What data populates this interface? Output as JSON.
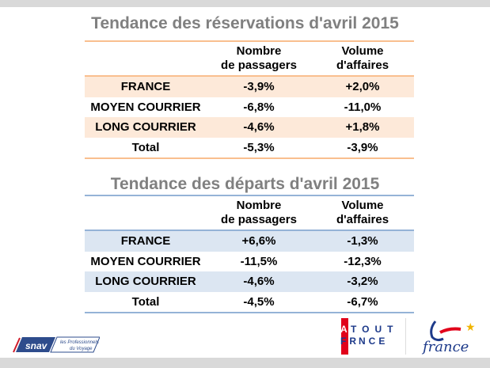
{
  "reservations": {
    "title": "Tendance des réservations d'avril 2015",
    "headers": [
      "",
      "Nombre de passagers",
      "Volume d'affaires"
    ],
    "rows": [
      [
        "FRANCE",
        "-3,9%",
        "+2,0%"
      ],
      [
        "MOYEN COURRIER",
        "-6,8%",
        "-11,0%"
      ],
      [
        "LONG COURRIER",
        "-4,6%",
        "+1,8%"
      ],
      [
        "Total",
        "-5,3%",
        "-3,9%"
      ]
    ]
  },
  "departs": {
    "title": "Tendance des départs d'avril 2015",
    "headers": [
      "",
      "Nombre de passagers",
      "Volume d'affaires"
    ],
    "rows": [
      [
        "FRANCE",
        "+6,6%",
        "-1,3%"
      ],
      [
        "MOYEN COURRIER",
        "-11,5%",
        "-12,3%"
      ],
      [
        "LONG COURRIER",
        "-4,6%",
        "-3,2%"
      ],
      [
        "Total",
        "-4,5%",
        "-6,7%"
      ]
    ]
  },
  "logos": {
    "snav": "snav les Professionnels du Voyage",
    "atout": "ATOUT FRANCE",
    "france": "france"
  },
  "colors": {
    "orange_line": "#f9bf8f",
    "orange_band": "#fde9d9",
    "blue_line": "#95b3d7",
    "blue_band": "#dce6f2"
  }
}
